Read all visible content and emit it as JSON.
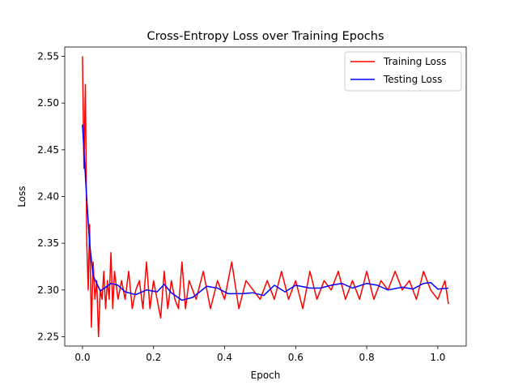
{
  "chart_data": {
    "type": "line",
    "title": "Cross-Entropy Loss over Training Epochs",
    "xlabel": "Epoch",
    "ylabel": "Loss",
    "xlim": [
      -0.05,
      1.08
    ],
    "ylim": [
      2.24,
      2.56
    ],
    "x_ticks": [
      0.0,
      0.2,
      0.4,
      0.6,
      0.8,
      1.0
    ],
    "x_tick_labels": [
      "0.0",
      "0.2",
      "0.4",
      "0.6",
      "0.8",
      "1.0"
    ],
    "y_ticks": [
      2.25,
      2.3,
      2.35,
      2.4,
      2.45,
      2.5,
      2.55
    ],
    "y_tick_labels": [
      "2.25",
      "2.30",
      "2.35",
      "2.40",
      "2.45",
      "2.50",
      "2.55"
    ],
    "grid": false,
    "legend_position": "top-right",
    "series": [
      {
        "name": "Training Loss",
        "color": "#ff0000",
        "x": [
          0.0,
          0.004,
          0.008,
          0.012,
          0.016,
          0.02,
          0.025,
          0.03,
          0.035,
          0.04,
          0.045,
          0.05,
          0.055,
          0.06,
          0.065,
          0.07,
          0.075,
          0.08,
          0.085,
          0.09,
          0.1,
          0.11,
          0.12,
          0.13,
          0.14,
          0.15,
          0.16,
          0.17,
          0.18,
          0.19,
          0.2,
          0.21,
          0.22,
          0.23,
          0.24,
          0.25,
          0.26,
          0.27,
          0.28,
          0.29,
          0.3,
          0.32,
          0.34,
          0.36,
          0.38,
          0.4,
          0.42,
          0.44,
          0.46,
          0.48,
          0.5,
          0.52,
          0.54,
          0.56,
          0.58,
          0.6,
          0.62,
          0.64,
          0.66,
          0.68,
          0.7,
          0.72,
          0.74,
          0.76,
          0.78,
          0.8,
          0.82,
          0.84,
          0.86,
          0.88,
          0.9,
          0.92,
          0.94,
          0.96,
          0.98,
          1.0,
          1.02,
          1.03
        ],
        "values": [
          2.55,
          2.43,
          2.52,
          2.35,
          2.3,
          2.37,
          2.26,
          2.33,
          2.29,
          2.31,
          2.25,
          2.3,
          2.29,
          2.32,
          2.28,
          2.31,
          2.29,
          2.34,
          2.28,
          2.32,
          2.29,
          2.31,
          2.29,
          2.32,
          2.28,
          2.3,
          2.31,
          2.28,
          2.33,
          2.28,
          2.31,
          2.29,
          2.27,
          2.32,
          2.28,
          2.31,
          2.29,
          2.28,
          2.33,
          2.28,
          2.31,
          2.29,
          2.32,
          2.28,
          2.31,
          2.29,
          2.33,
          2.28,
          2.31,
          2.3,
          2.29,
          2.31,
          2.29,
          2.32,
          2.29,
          2.31,
          2.28,
          2.32,
          2.29,
          2.31,
          2.3,
          2.32,
          2.29,
          2.31,
          2.29,
          2.32,
          2.29,
          2.31,
          2.3,
          2.32,
          2.3,
          2.31,
          2.29,
          2.32,
          2.3,
          2.29,
          2.31,
          2.285
        ]
      },
      {
        "name": "Testing Loss",
        "color": "#0000ff",
        "x": [
          0.0,
          0.01,
          0.02,
          0.03,
          0.05,
          0.08,
          0.1,
          0.12,
          0.15,
          0.18,
          0.21,
          0.23,
          0.25,
          0.28,
          0.31,
          0.35,
          0.38,
          0.41,
          0.45,
          0.48,
          0.51,
          0.54,
          0.57,
          0.6,
          0.64,
          0.67,
          0.7,
          0.73,
          0.76,
          0.8,
          0.83,
          0.86,
          0.9,
          0.93,
          0.96,
          0.98,
          1.0,
          1.03
        ],
        "values": [
          2.477,
          2.41,
          2.35,
          2.315,
          2.299,
          2.307,
          2.305,
          2.298,
          2.295,
          2.3,
          2.298,
          2.306,
          2.297,
          2.289,
          2.292,
          2.304,
          2.302,
          2.296,
          2.296,
          2.297,
          2.294,
          2.305,
          2.298,
          2.305,
          2.302,
          2.302,
          2.305,
          2.307,
          2.302,
          2.307,
          2.305,
          2.3,
          2.303,
          2.301,
          2.307,
          2.308,
          2.301,
          2.302
        ]
      }
    ]
  }
}
